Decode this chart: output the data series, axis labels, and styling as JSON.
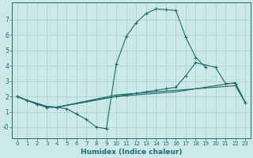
{
  "xlabel": "Humidex (Indice chaleur)",
  "bg_color": "#cce8e8",
  "grid_color": "#aad4d4",
  "line_color": "#1a6b6b",
  "x_ticks": [
    0,
    1,
    2,
    3,
    4,
    5,
    6,
    7,
    8,
    9,
    10,
    11,
    12,
    13,
    14,
    15,
    16,
    17,
    18,
    19,
    20,
    21,
    22,
    23
  ],
  "y_ticks": [
    0,
    1,
    2,
    3,
    4,
    5,
    6,
    7
  ],
  "ylim": [
    -0.7,
    8.1
  ],
  "xlim": [
    -0.5,
    23.5
  ],
  "series": [
    {
      "x": [
        0,
        1,
        2,
        3,
        4,
        10,
        11,
        12,
        13,
        14,
        15,
        16,
        17,
        18,
        19,
        20,
        21,
        22,
        23
      ],
      "y": [
        2.0,
        1.75,
        1.55,
        1.35,
        1.3,
        2.1,
        2.15,
        2.2,
        2.25,
        2.3,
        2.35,
        2.4,
        2.45,
        2.5,
        2.55,
        2.6,
        2.65,
        2.7,
        1.6
      ],
      "marker": false
    },
    {
      "x": [
        0,
        1,
        2,
        3,
        4,
        10,
        11,
        12,
        13,
        14,
        15,
        16,
        17,
        18,
        19,
        20,
        21,
        22,
        23
      ],
      "y": [
        2.0,
        1.75,
        1.55,
        1.35,
        1.3,
        2.0,
        2.05,
        2.1,
        2.15,
        2.2,
        2.25,
        2.3,
        2.4,
        2.5,
        2.6,
        2.7,
        2.8,
        2.9,
        1.6
      ],
      "marker": false
    },
    {
      "x": [
        0,
        1,
        2,
        3,
        4,
        5,
        6,
        7,
        8,
        9,
        10,
        11,
        12,
        13,
        14,
        15,
        16,
        17,
        18,
        19
      ],
      "y": [
        2.0,
        1.75,
        1.5,
        1.3,
        1.3,
        1.2,
        0.85,
        0.5,
        0.0,
        -0.1,
        4.1,
        5.9,
        6.8,
        7.4,
        7.7,
        7.65,
        7.6,
        5.85,
        4.55,
        3.9
      ],
      "marker": true
    },
    {
      "x": [
        0,
        1,
        2,
        3,
        4,
        10,
        11,
        12,
        13,
        14,
        15,
        16,
        17,
        18,
        20,
        21,
        22,
        23
      ],
      "y": [
        2.0,
        1.75,
        1.5,
        1.3,
        1.3,
        2.0,
        2.1,
        2.2,
        2.3,
        2.4,
        2.5,
        2.6,
        3.35,
        4.2,
        3.9,
        2.85,
        2.85,
        1.6
      ],
      "marker": true
    }
  ]
}
